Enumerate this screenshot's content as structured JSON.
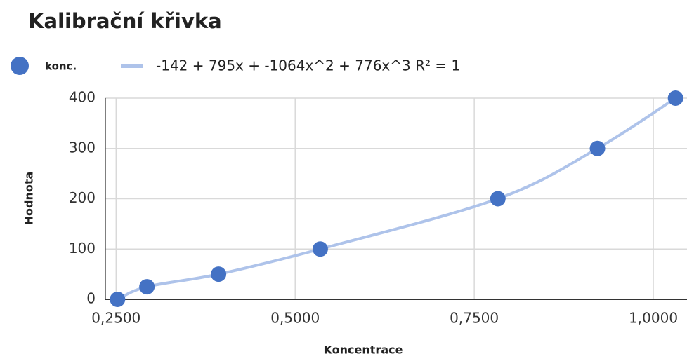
{
  "chart_data": {
    "type": "scatter",
    "title": "Kalibrační křivka",
    "x_label": "Koncentrace",
    "y_label": "Hodnota",
    "series": [
      {
        "name": "konc.",
        "color": "#4472c4",
        "x": [
          0.252,
          0.293,
          0.393,
          0.535,
          0.783,
          0.922,
          1.031
        ],
        "values": [
          0,
          25,
          50,
          100,
          200,
          300,
          400
        ]
      }
    ],
    "trendline": {
      "name": "-142 + 795x + -1064x^2 + 776x^3 R² = 1",
      "color": "#aec3ea"
    },
    "xlim": [
      0.235,
      1.047
    ],
    "ylim": [
      0,
      400
    ],
    "xticks": [
      {
        "value": 0.25,
        "label": "0,2500"
      },
      {
        "value": 0.5,
        "label": "0,5000"
      },
      {
        "value": 0.75,
        "label": "0,7500"
      },
      {
        "value": 1.0,
        "label": "1,0000"
      }
    ],
    "yticks": [
      0,
      100,
      200,
      300,
      400
    ],
    "grid": true,
    "legend": "top-left"
  }
}
